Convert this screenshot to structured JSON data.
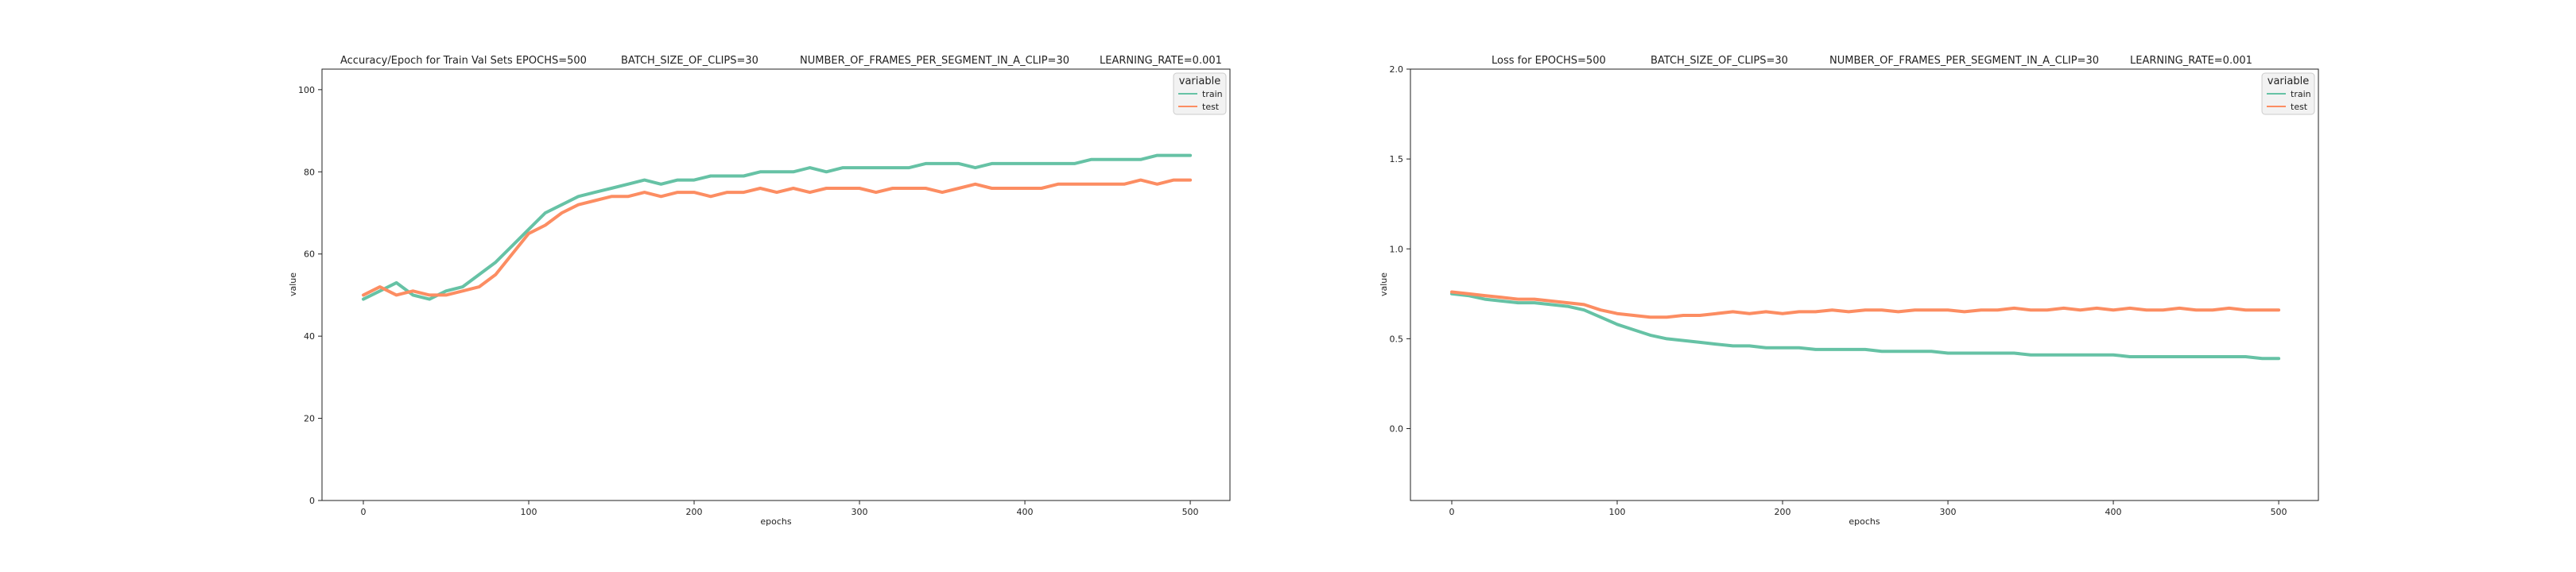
{
  "chart_data": [
    {
      "type": "line",
      "title_parts": [
        "Accuracy/Epoch for Train Val Sets EPOCHS=500",
        "BATCH_SIZE_OF_CLIPS=30",
        "NUMBER_OF_FRAMES_PER_SEGMENT_IN_A_CLIP=30",
        "LEARNING_RATE=0.001"
      ],
      "xlabel": "epochs",
      "ylabel": "value",
      "xlim": [
        -25,
        524
      ],
      "ylim": [
        0,
        105
      ],
      "xticks": [
        0,
        100,
        200,
        300,
        400,
        500
      ],
      "yticks": [
        0,
        20,
        40,
        60,
        80,
        100
      ],
      "legend": {
        "title": "variable",
        "position": "top-right",
        "entries": [
          "train",
          "test"
        ]
      },
      "series": [
        {
          "name": "train",
          "color": "#66c2a5",
          "x": [
            0,
            10,
            20,
            30,
            40,
            50,
            60,
            70,
            80,
            90,
            100,
            110,
            120,
            130,
            140,
            150,
            160,
            170,
            180,
            190,
            200,
            210,
            220,
            230,
            240,
            250,
            260,
            270,
            280,
            290,
            300,
            310,
            320,
            330,
            340,
            350,
            360,
            370,
            380,
            390,
            400,
            410,
            420,
            430,
            440,
            450,
            460,
            470,
            480,
            490,
            500
          ],
          "y": [
            49,
            51,
            53,
            50,
            49,
            51,
            52,
            55,
            58,
            62,
            66,
            70,
            72,
            74,
            75,
            76,
            77,
            78,
            77,
            78,
            78,
            79,
            79,
            79,
            80,
            80,
            80,
            81,
            80,
            81,
            81,
            81,
            81,
            81,
            82,
            82,
            82,
            81,
            82,
            82,
            82,
            82,
            82,
            82,
            83,
            83,
            83,
            83,
            84,
            84,
            84
          ]
        },
        {
          "name": "test",
          "color": "#fc8d62",
          "x": [
            0,
            10,
            20,
            30,
            40,
            50,
            60,
            70,
            80,
            90,
            100,
            110,
            120,
            130,
            140,
            150,
            160,
            170,
            180,
            190,
            200,
            210,
            220,
            230,
            240,
            250,
            260,
            270,
            280,
            290,
            300,
            310,
            320,
            330,
            340,
            350,
            360,
            370,
            380,
            390,
            400,
            410,
            420,
            430,
            440,
            450,
            460,
            470,
            480,
            490,
            500
          ],
          "y": [
            50,
            52,
            50,
            51,
            50,
            50,
            51,
            52,
            55,
            60,
            65,
            67,
            70,
            72,
            73,
            74,
            74,
            75,
            74,
            75,
            75,
            74,
            75,
            75,
            76,
            75,
            76,
            75,
            76,
            76,
            76,
            75,
            76,
            76,
            76,
            75,
            76,
            77,
            76,
            76,
            76,
            76,
            77,
            77,
            77,
            77,
            77,
            78,
            77,
            78,
            78
          ]
        }
      ]
    },
    {
      "type": "line",
      "title_parts": [
        "Loss for  EPOCHS=500",
        "BATCH_SIZE_OF_CLIPS=30",
        "NUMBER_OF_FRAMES_PER_SEGMENT_IN_A_CLIP=30",
        "LEARNING_RATE=0.001"
      ],
      "xlabel": "epochs",
      "ylabel": "value",
      "xlim": [
        -25,
        524
      ],
      "ylim": [
        -0.4,
        2.0
      ],
      "xticks": [
        0,
        100,
        200,
        300,
        400,
        500
      ],
      "yticks": [
        0.0,
        0.5,
        1.0,
        1.5,
        2.0
      ],
      "legend": {
        "title": "variable",
        "position": "top-right",
        "entries": [
          "train",
          "test"
        ]
      },
      "series": [
        {
          "name": "train",
          "color": "#66c2a5",
          "x": [
            0,
            10,
            20,
            30,
            40,
            50,
            60,
            70,
            80,
            90,
            100,
            110,
            120,
            130,
            140,
            150,
            160,
            170,
            180,
            190,
            200,
            210,
            220,
            230,
            240,
            250,
            260,
            270,
            280,
            290,
            300,
            310,
            320,
            330,
            340,
            350,
            360,
            370,
            380,
            390,
            400,
            410,
            420,
            430,
            440,
            450,
            460,
            470,
            480,
            490,
            500
          ],
          "y": [
            0.75,
            0.74,
            0.72,
            0.71,
            0.7,
            0.7,
            0.69,
            0.68,
            0.66,
            0.62,
            0.58,
            0.55,
            0.52,
            0.5,
            0.49,
            0.48,
            0.47,
            0.46,
            0.46,
            0.45,
            0.45,
            0.45,
            0.44,
            0.44,
            0.44,
            0.44,
            0.43,
            0.43,
            0.43,
            0.43,
            0.42,
            0.42,
            0.42,
            0.42,
            0.42,
            0.41,
            0.41,
            0.41,
            0.41,
            0.41,
            0.41,
            0.4,
            0.4,
            0.4,
            0.4,
            0.4,
            0.4,
            0.4,
            0.4,
            0.39,
            0.39
          ]
        },
        {
          "name": "test",
          "color": "#fc8d62",
          "x": [
            0,
            10,
            20,
            30,
            40,
            50,
            60,
            70,
            80,
            90,
            100,
            110,
            120,
            130,
            140,
            150,
            160,
            170,
            180,
            190,
            200,
            210,
            220,
            230,
            240,
            250,
            260,
            270,
            280,
            290,
            300,
            310,
            320,
            330,
            340,
            350,
            360,
            370,
            380,
            390,
            400,
            410,
            420,
            430,
            440,
            450,
            460,
            470,
            480,
            490,
            500
          ],
          "y": [
            0.76,
            0.75,
            0.74,
            0.73,
            0.72,
            0.72,
            0.71,
            0.7,
            0.69,
            0.66,
            0.64,
            0.63,
            0.62,
            0.62,
            0.63,
            0.63,
            0.64,
            0.65,
            0.64,
            0.65,
            0.64,
            0.65,
            0.65,
            0.66,
            0.65,
            0.66,
            0.66,
            0.65,
            0.66,
            0.66,
            0.66,
            0.65,
            0.66,
            0.66,
            0.67,
            0.66,
            0.66,
            0.67,
            0.66,
            0.67,
            0.66,
            0.67,
            0.66,
            0.66,
            0.67,
            0.66,
            0.66,
            0.67,
            0.66,
            0.66,
            0.66
          ]
        }
      ]
    }
  ]
}
